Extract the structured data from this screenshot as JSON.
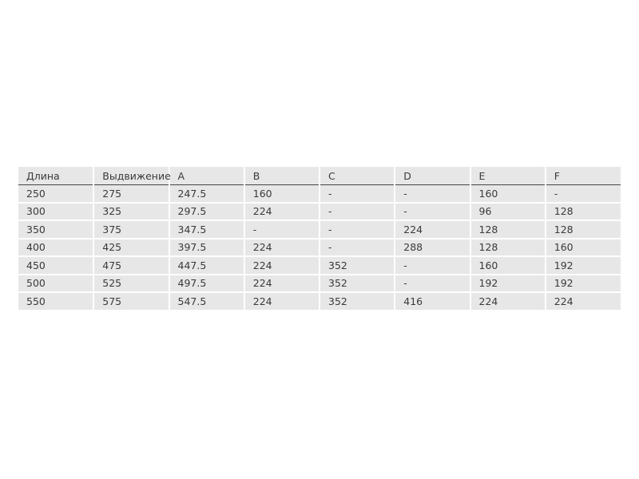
{
  "table": {
    "headers": [
      "Длина",
      "Выдвижение",
      "A",
      "B",
      "C",
      "D",
      "E",
      "F"
    ],
    "rows": [
      [
        "250",
        "275",
        "247.5",
        "160",
        "-",
        "-",
        "160",
        "-"
      ],
      [
        "300",
        "325",
        "297.5",
        "224",
        "-",
        "-",
        "96",
        "128"
      ],
      [
        "350",
        "375",
        "347.5",
        "-",
        "-",
        "224",
        "128",
        "128"
      ],
      [
        "400",
        "425",
        "397.5",
        "224",
        "-",
        "288",
        "128",
        "160"
      ],
      [
        "450",
        "475",
        "447.5",
        "224",
        "352",
        "-",
        "160",
        "192"
      ],
      [
        "500",
        "525",
        "497.5",
        "224",
        "352",
        "-",
        "192",
        "192"
      ],
      [
        "550",
        "575",
        "547.5",
        "224",
        "352",
        "416",
        "224",
        "224"
      ]
    ]
  }
}
